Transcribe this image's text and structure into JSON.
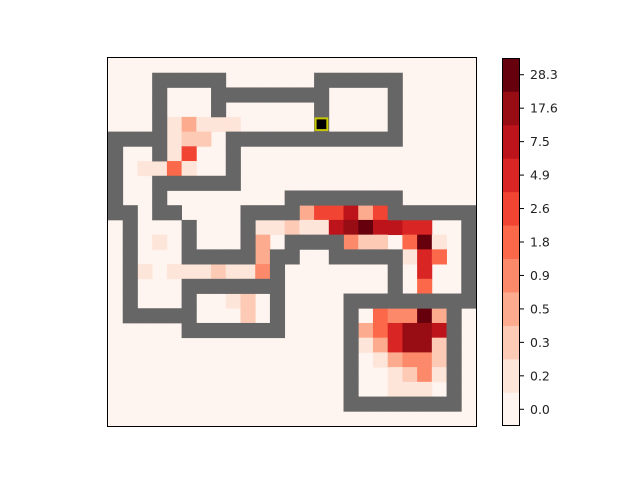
{
  "chart_data": {
    "type": "heatmap",
    "title": "",
    "xlabel": "",
    "ylabel": "",
    "grid": false,
    "rows": 25,
    "cols": 25,
    "grid_size": [
      25,
      25
    ],
    "colormap": "Reds",
    "colorbar": {
      "ticks": [
        "0.0",
        "0.2",
        "0.3",
        "0.5",
        "0.9",
        "1.8",
        "2.6",
        "4.9",
        "7.5",
        "17.6",
        "28.3"
      ],
      "palette": [
        "#fff5f0",
        "#fee5d9",
        "#fdcab5",
        "#fcab8f",
        "#fc8a6a",
        "#fb694a",
        "#f14432",
        "#d92523",
        "#bc141a",
        "#980c13",
        "#67000d"
      ],
      "placement": "right"
    },
    "wall_color": "#666666",
    "agent_color": "#000000",
    "agent_outline": "#c8c800",
    "wall_cells": [
      [
        1,
        3
      ],
      [
        1,
        4
      ],
      [
        1,
        5
      ],
      [
        1,
        6
      ],
      [
        1,
        7
      ],
      [
        1,
        14
      ],
      [
        1,
        15
      ],
      [
        1,
        16
      ],
      [
        1,
        17
      ],
      [
        1,
        18
      ],
      [
        1,
        19
      ],
      [
        2,
        3
      ],
      [
        2,
        7
      ],
      [
        2,
        8
      ],
      [
        2,
        9
      ],
      [
        2,
        10
      ],
      [
        2,
        11
      ],
      [
        2,
        12
      ],
      [
        2,
        13
      ],
      [
        2,
        14
      ],
      [
        2,
        19
      ],
      [
        3,
        3
      ],
      [
        3,
        7
      ],
      [
        3,
        14
      ],
      [
        3,
        19
      ],
      [
        4,
        3
      ],
      [
        4,
        14
      ],
      [
        4,
        19
      ],
      [
        5,
        0
      ],
      [
        5,
        1
      ],
      [
        5,
        2
      ],
      [
        5,
        3
      ],
      [
        5,
        8
      ],
      [
        5,
        9
      ],
      [
        5,
        10
      ],
      [
        5,
        11
      ],
      [
        5,
        12
      ],
      [
        5,
        13
      ],
      [
        5,
        14
      ],
      [
        5,
        15
      ],
      [
        5,
        16
      ],
      [
        5,
        17
      ],
      [
        5,
        18
      ],
      [
        5,
        19
      ],
      [
        6,
        0
      ],
      [
        6,
        3
      ],
      [
        6,
        8
      ],
      [
        7,
        0
      ],
      [
        7,
        8
      ],
      [
        8,
        0
      ],
      [
        8,
        3
      ],
      [
        8,
        4
      ],
      [
        8,
        5
      ],
      [
        8,
        6
      ],
      [
        8,
        7
      ],
      [
        8,
        8
      ],
      [
        9,
        0
      ],
      [
        9,
        3
      ],
      [
        9,
        12
      ],
      [
        9,
        13
      ],
      [
        9,
        14
      ],
      [
        9,
        15
      ],
      [
        9,
        16
      ],
      [
        9,
        17
      ],
      [
        9,
        18
      ],
      [
        9,
        19
      ],
      [
        10,
        0
      ],
      [
        10,
        1
      ],
      [
        10,
        3
      ],
      [
        10,
        4
      ],
      [
        10,
        9
      ],
      [
        10,
        10
      ],
      [
        10,
        11
      ],
      [
        10,
        12
      ],
      [
        10,
        19
      ],
      [
        10,
        20
      ],
      [
        10,
        21
      ],
      [
        10,
        22
      ],
      [
        10,
        23
      ],
      [
        10,
        24
      ],
      [
        11,
        1
      ],
      [
        11,
        5
      ],
      [
        11,
        9
      ],
      [
        11,
        24
      ],
      [
        12,
        1
      ],
      [
        12,
        5
      ],
      [
        12,
        9
      ],
      [
        12,
        12
      ],
      [
        12,
        13
      ],
      [
        12,
        14
      ],
      [
        12,
        15
      ],
      [
        12,
        24
      ],
      [
        13,
        1
      ],
      [
        13,
        5
      ],
      [
        13,
        6
      ],
      [
        13,
        7
      ],
      [
        13,
        8
      ],
      [
        13,
        9
      ],
      [
        13,
        11
      ],
      [
        13,
        12
      ],
      [
        13,
        15
      ],
      [
        13,
        16
      ],
      [
        13,
        17
      ],
      [
        13,
        18
      ],
      [
        13,
        19
      ],
      [
        13,
        24
      ],
      [
        14,
        1
      ],
      [
        14,
        11
      ],
      [
        14,
        19
      ],
      [
        14,
        24
      ],
      [
        15,
        1
      ],
      [
        15,
        5
      ],
      [
        15,
        6
      ],
      [
        15,
        7
      ],
      [
        15,
        8
      ],
      [
        15,
        9
      ],
      [
        15,
        10
      ],
      [
        15,
        11
      ],
      [
        15,
        19
      ],
      [
        15,
        24
      ],
      [
        16,
        1
      ],
      [
        16,
        5
      ],
      [
        16,
        11
      ],
      [
        16,
        16
      ],
      [
        16,
        17
      ],
      [
        16,
        18
      ],
      [
        16,
        19
      ],
      [
        16,
        20
      ],
      [
        16,
        21
      ],
      [
        16,
        22
      ],
      [
        16,
        23
      ],
      [
        16,
        24
      ],
      [
        17,
        1
      ],
      [
        17,
        2
      ],
      [
        17,
        3
      ],
      [
        17,
        4
      ],
      [
        17,
        5
      ],
      [
        17,
        11
      ],
      [
        17,
        16
      ],
      [
        17,
        23
      ],
      [
        18,
        5
      ],
      [
        18,
        6
      ],
      [
        18,
        7
      ],
      [
        18,
        8
      ],
      [
        18,
        9
      ],
      [
        18,
        10
      ],
      [
        18,
        11
      ],
      [
        18,
        16
      ],
      [
        18,
        23
      ],
      [
        19,
        16
      ],
      [
        19,
        23
      ],
      [
        20,
        16
      ],
      [
        20,
        23
      ],
      [
        21,
        16
      ],
      [
        21,
        23
      ],
      [
        22,
        16
      ],
      [
        22,
        23
      ],
      [
        23,
        16
      ],
      [
        23,
        17
      ],
      [
        23,
        18
      ],
      [
        23,
        19
      ],
      [
        23,
        20
      ],
      [
        23,
        21
      ],
      [
        23,
        22
      ],
      [
        23,
        23
      ]
    ],
    "agent": [
      4,
      14
    ],
    "cells": [
      [
        4,
        4,
        1
      ],
      [
        4,
        5,
        3
      ],
      [
        4,
        6,
        1
      ],
      [
        4,
        7,
        1
      ],
      [
        4,
        8,
        1
      ],
      [
        5,
        4,
        1
      ],
      [
        5,
        5,
        2
      ],
      [
        5,
        6,
        2
      ],
      [
        6,
        1,
        0
      ],
      [
        6,
        2,
        0
      ],
      [
        6,
        4,
        1
      ],
      [
        6,
        5,
        6
      ],
      [
        6,
        6,
        0
      ],
      [
        7,
        1,
        0
      ],
      [
        7,
        2,
        1
      ],
      [
        7,
        3,
        1
      ],
      [
        7,
        4,
        5
      ],
      [
        7,
        5,
        1
      ],
      [
        8,
        1,
        0
      ],
      [
        8,
        2,
        0
      ],
      [
        9,
        1,
        0
      ],
      [
        9,
        2,
        0
      ],
      [
        10,
        13,
        3
      ],
      [
        10,
        14,
        6
      ],
      [
        10,
        15,
        6
      ],
      [
        10,
        16,
        8
      ],
      [
        10,
        17,
        3
      ],
      [
        10,
        18,
        6
      ],
      [
        11,
        2,
        0
      ],
      [
        11,
        3,
        0
      ],
      [
        11,
        4,
        0
      ],
      [
        11,
        10,
        1
      ],
      [
        11,
        11,
        1
      ],
      [
        11,
        12,
        2
      ],
      [
        11,
        13,
        1
      ],
      [
        11,
        14,
        1
      ],
      [
        11,
        15,
        8
      ],
      [
        11,
        16,
        9
      ],
      [
        11,
        17,
        10
      ],
      [
        11,
        18,
        8
      ],
      [
        11,
        19,
        8
      ],
      [
        11,
        20,
        7
      ],
      [
        11,
        21,
        7
      ],
      [
        11,
        22,
        0
      ],
      [
        11,
        23,
        0
      ],
      [
        12,
        2,
        0
      ],
      [
        12,
        3,
        1
      ],
      [
        12,
        4,
        0
      ],
      [
        12,
        10,
        3
      ],
      [
        12,
        11,
        0
      ],
      [
        12,
        16,
        4
      ],
      [
        12,
        17,
        2
      ],
      [
        12,
        18,
        2
      ],
      [
        12,
        19,
        0
      ],
      [
        12,
        20,
        5
      ],
      [
        12,
        21,
        10
      ],
      [
        12,
        22,
        1
      ],
      [
        12,
        23,
        0
      ],
      [
        13,
        2,
        0
      ],
      [
        13,
        3,
        0
      ],
      [
        13,
        4,
        0
      ],
      [
        13,
        10,
        3
      ],
      [
        13,
        20,
        1
      ],
      [
        13,
        21,
        7
      ],
      [
        13,
        22,
        5
      ],
      [
        13,
        23,
        0
      ],
      [
        14,
        2,
        1
      ],
      [
        14,
        3,
        0
      ],
      [
        14,
        4,
        1
      ],
      [
        14,
        5,
        1
      ],
      [
        14,
        6,
        1
      ],
      [
        14,
        7,
        2
      ],
      [
        14,
        8,
        1
      ],
      [
        14,
        9,
        1
      ],
      [
        14,
        10,
        4
      ],
      [
        14,
        20,
        0
      ],
      [
        14,
        21,
        7
      ],
      [
        14,
        22,
        0
      ],
      [
        14,
        23,
        0
      ],
      [
        15,
        2,
        0
      ],
      [
        15,
        3,
        0
      ],
      [
        15,
        4,
        0
      ],
      [
        15,
        7,
        1
      ],
      [
        15,
        8,
        1
      ],
      [
        15,
        9,
        2
      ],
      [
        15,
        10,
        0
      ],
      [
        15,
        21,
        5
      ],
      [
        16,
        7,
        0
      ],
      [
        16,
        8,
        1
      ],
      [
        16,
        9,
        2
      ],
      [
        16,
        10,
        0
      ],
      [
        17,
        7,
        0
      ],
      [
        17,
        8,
        0
      ],
      [
        17,
        9,
        2
      ],
      [
        17,
        10,
        0
      ],
      [
        17,
        17,
        0
      ],
      [
        17,
        18,
        5
      ],
      [
        17,
        19,
        4
      ],
      [
        17,
        20,
        4
      ],
      [
        17,
        21,
        10
      ],
      [
        17,
        22,
        3
      ],
      [
        18,
        17,
        3
      ],
      [
        18,
        18,
        5
      ],
      [
        18,
        19,
        7
      ],
      [
        18,
        20,
        9
      ],
      [
        18,
        21,
        9
      ],
      [
        18,
        22,
        8
      ],
      [
        19,
        17,
        1
      ],
      [
        19,
        18,
        3
      ],
      [
        19,
        19,
        7
      ],
      [
        19,
        20,
        9
      ],
      [
        19,
        21,
        9
      ],
      [
        19,
        22,
        2
      ],
      [
        20,
        17,
        0
      ],
      [
        20,
        18,
        1
      ],
      [
        20,
        19,
        3
      ],
      [
        20,
        20,
        4
      ],
      [
        20,
        21,
        4
      ],
      [
        20,
        22,
        2
      ],
      [
        21,
        17,
        0
      ],
      [
        21,
        18,
        0
      ],
      [
        21,
        19,
        1
      ],
      [
        21,
        20,
        2
      ],
      [
        21,
        21,
        4
      ],
      [
        21,
        22,
        1
      ],
      [
        22,
        18,
        0
      ],
      [
        22,
        19,
        1
      ],
      [
        22,
        20,
        1
      ],
      [
        22,
        21,
        1
      ],
      [
        22,
        22,
        0
      ]
    ]
  }
}
